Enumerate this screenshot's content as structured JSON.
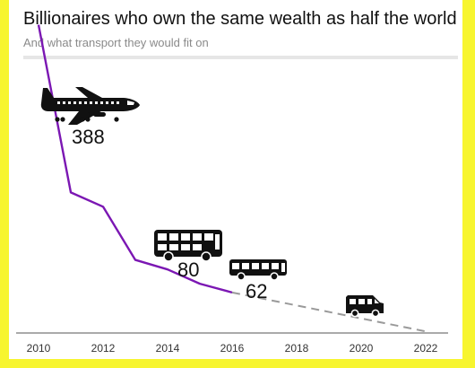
{
  "title": "Billionaires who own the same wealth as half the world",
  "subtitle": "And what transport they would fit on",
  "colors": {
    "background": "#f7f52f",
    "actual_line": "#7b17b3",
    "projection_line": "#9a9a9a",
    "icons": "#111111"
  },
  "chart_data": {
    "type": "line",
    "title": "Billionaires who own the same wealth as half the world",
    "subtitle": "And what transport they would fit on",
    "xlabel": "",
    "ylabel": "",
    "xlim": [
      2010,
      2022
    ],
    "ylim": [
      0,
      400
    ],
    "grid": false,
    "x_ticks": [
      "2010",
      "2012",
      "2014",
      "2016",
      "2018",
      "2020",
      "2022"
    ],
    "series": [
      {
        "style": "solid",
        "x": [
          2010,
          2011,
          2012,
          2013,
          2014,
          2015,
          2016
        ],
        "values": [
          388,
          177,
          159,
          92,
          80,
          62,
          51
        ]
      },
      {
        "style": "dashed",
        "x": [
          2016,
          2022
        ],
        "values": [
          51,
          2
        ]
      }
    ],
    "annotations": [
      {
        "label": "388",
        "icon": "airplane-icon"
      },
      {
        "label": "80",
        "icon": "double-decker-bus-icon"
      },
      {
        "label": "62",
        "icon": "bus-icon"
      },
      {
        "label": "",
        "icon": "van-icon"
      }
    ]
  }
}
